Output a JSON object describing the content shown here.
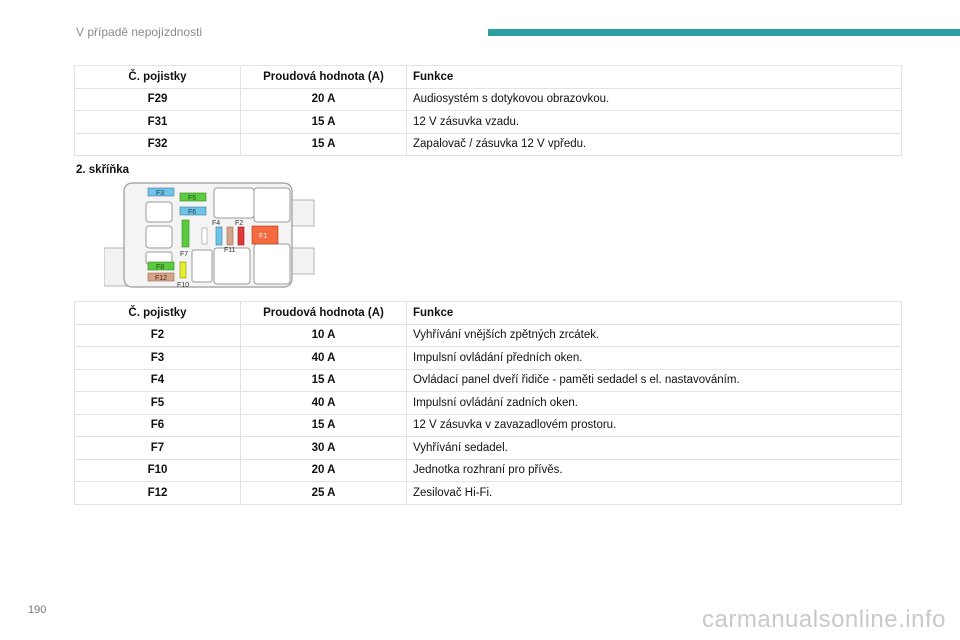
{
  "header": {
    "title": "V případě nepojízdnosti"
  },
  "table1": {
    "headers": [
      "Č. pojistky",
      "Proudová hodnota (A)",
      "Funkce"
    ],
    "rows": [
      [
        "F29",
        "20 A",
        "Audiosystém s dotykovou obrazovkou."
      ],
      [
        "F31",
        "15 A",
        "12 V zásuvka vzadu."
      ],
      [
        "F32",
        "15 A",
        "Zapalovač / zásuvka 12 V vpředu."
      ]
    ]
  },
  "box2_label": "2. skříňka",
  "diagram_labels": {
    "f3": "F3",
    "f5": "F5",
    "f6": "F6",
    "f4": "F4",
    "f2": "F2",
    "f1": "F1",
    "f11": "F11",
    "f7": "F7",
    "f8": "F8",
    "f12": "F12",
    "f10": "F10"
  },
  "table2": {
    "headers": [
      "Č. pojistky",
      "Proudová hodnota (A)",
      "Funkce"
    ],
    "rows": [
      [
        "F2",
        "10 A",
        "Vyhřívání vnějších zpětných zrcátek."
      ],
      [
        "F3",
        "40 A",
        "Impulsní ovládání předních oken."
      ],
      [
        "F4",
        "15 A",
        "Ovládací panel dveří řidiče - paměti sedadel s el. nastavováním."
      ],
      [
        "F5",
        "40 A",
        "Impulsní ovládání zadních oken."
      ],
      [
        "F6",
        "15 A",
        "12 V zásuvka v zavazadlovém prostoru."
      ],
      [
        "F7",
        "30 A",
        "Vyhřívání sedadel."
      ],
      [
        "F10",
        "20 A",
        "Jednotka rozhraní pro přívěs."
      ],
      [
        "F12",
        "25 A",
        "Zesilovač Hi-Fi."
      ]
    ]
  },
  "page_number": "190",
  "watermark": "carmanualsonline.info",
  "colors": {
    "accent": "#2d9ea2",
    "fuse_blue": "#6fc3e6",
    "fuse_green": "#5ccb3f",
    "fuse_yellow": "#e4ee2a",
    "fuse_orange": "#f26a3d",
    "fuse_tan": "#d7a48a",
    "fuse_red": "#e03a3a"
  }
}
